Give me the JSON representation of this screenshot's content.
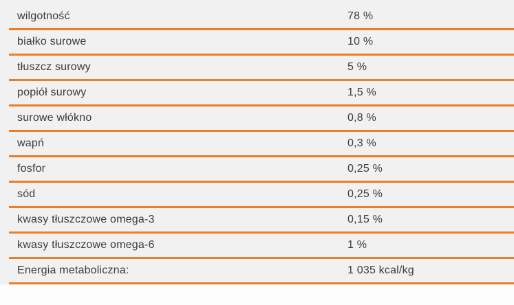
{
  "colors": {
    "page_background": "#fdfdfd",
    "table_background": "#f1f1f2",
    "row_divider_orange": "#ed7c23",
    "text": "#3b3b3b"
  },
  "nutrition_table": {
    "rows": [
      {
        "label": "wilgotność",
        "value": "78 %"
      },
      {
        "label": "białko surowe",
        "value": "10 %"
      },
      {
        "label": "tłuszcz surowy",
        "value": "5 %"
      },
      {
        "label": "popiół surowy",
        "value": "1,5 %"
      },
      {
        "label": "surowe włókno",
        "value": "0,8 %"
      },
      {
        "label": "wapń",
        "value": "0,3 %"
      },
      {
        "label": "fosfor",
        "value": "0,25 %"
      },
      {
        "label": "sód",
        "value": "0,25 %"
      },
      {
        "label": "kwasy tłuszczowe omega-3",
        "value": "0,15 %"
      },
      {
        "label": "kwasy tłuszczowe omega-6",
        "value": "1 %"
      },
      {
        "label": "Energia metaboliczna:",
        "value": "1 035 kcal/kg"
      }
    ]
  }
}
